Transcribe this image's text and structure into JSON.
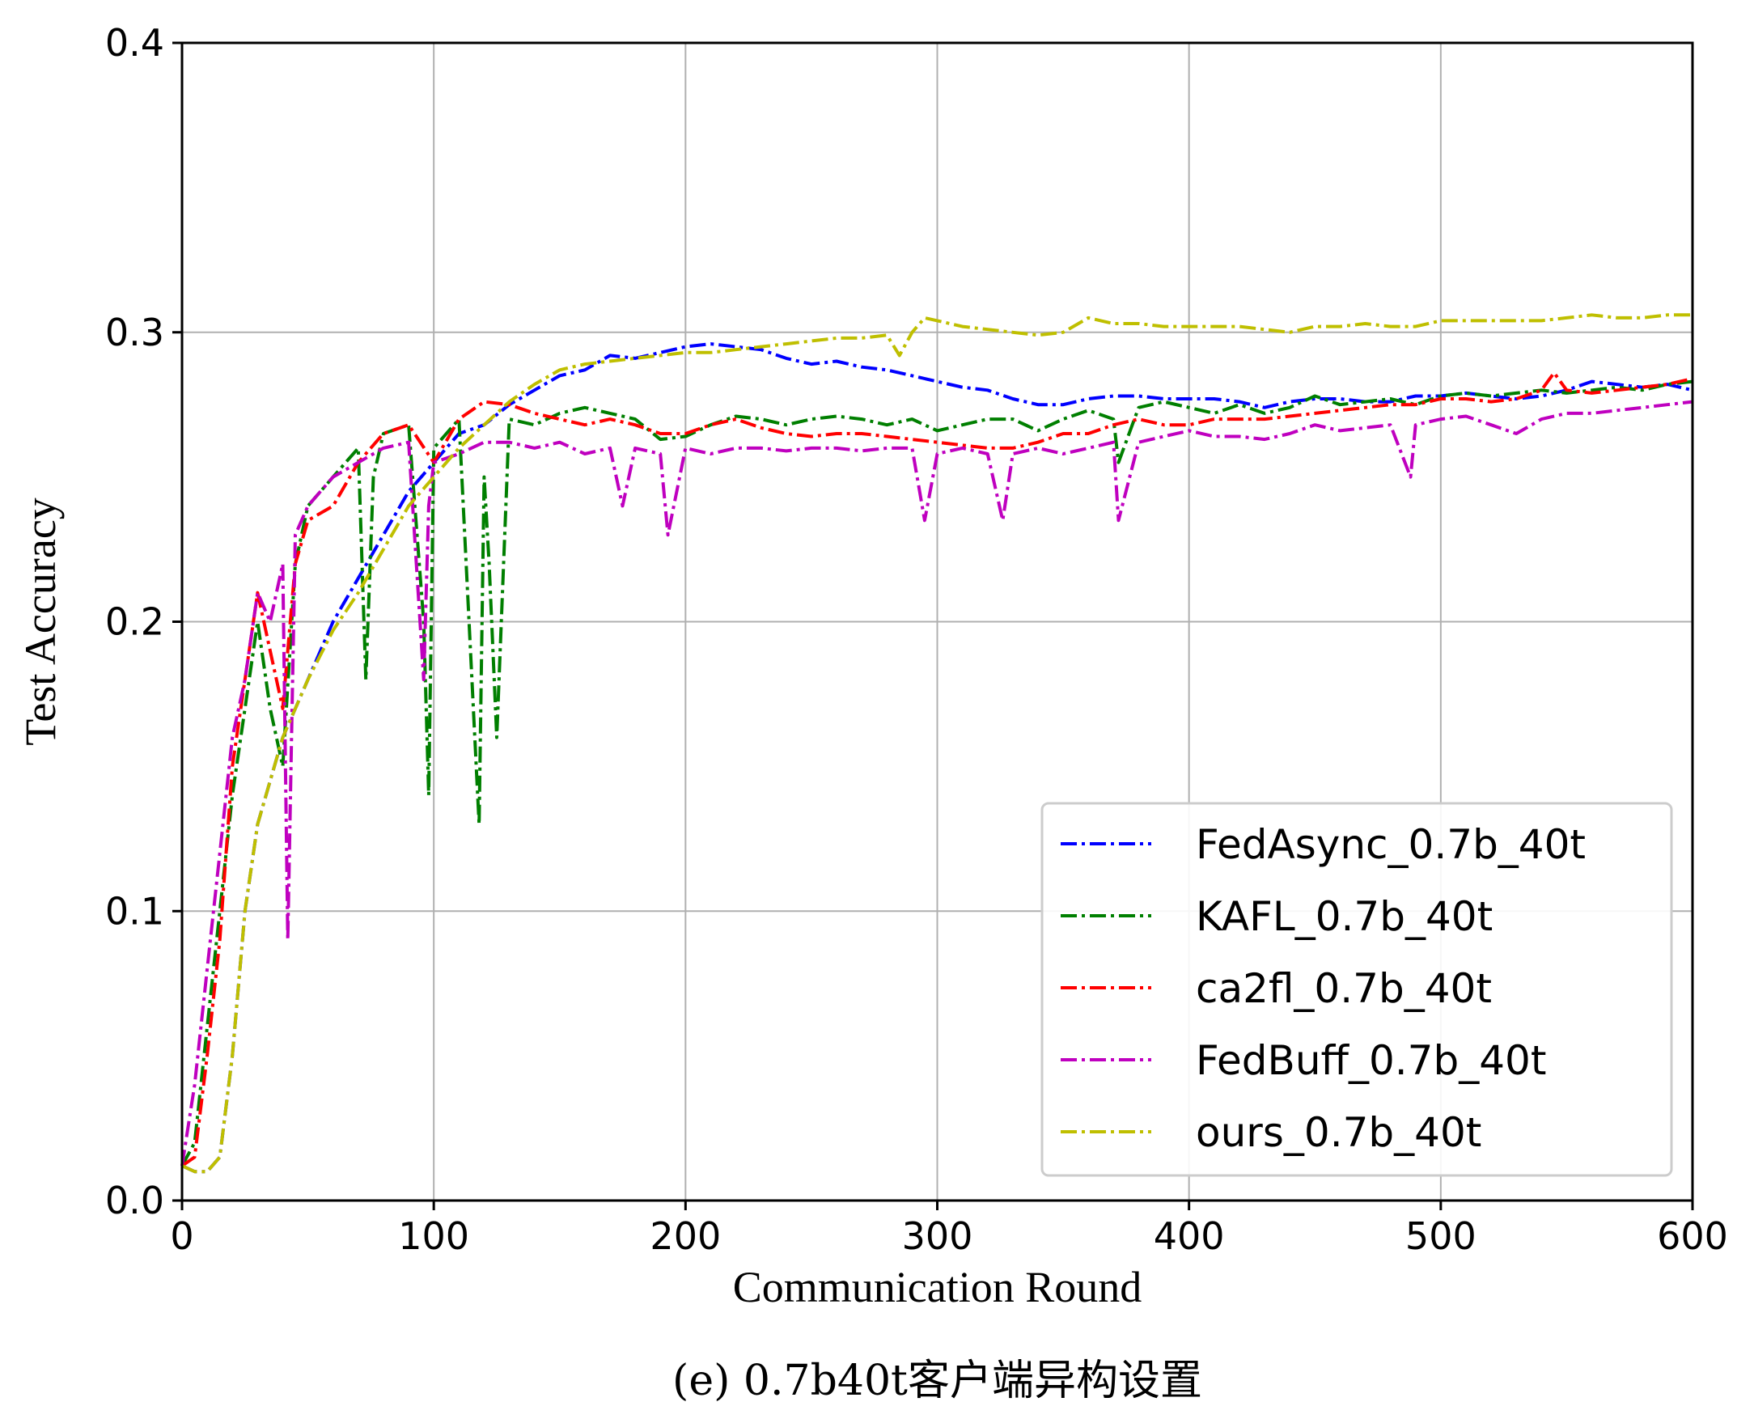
{
  "caption": "(e) 0.7b40t客户端异构设置",
  "chart_data": {
    "type": "line",
    "xlabel": "Communication Round",
    "ylabel": "Test Accuracy",
    "xlim": [
      0,
      600
    ],
    "ylim": [
      0.0,
      0.4
    ],
    "x_ticks": [
      0,
      100,
      200,
      300,
      400,
      500,
      600
    ],
    "x_tick_labels": [
      "0",
      "100",
      "200",
      "300",
      "400",
      "500",
      "600"
    ],
    "y_ticks": [
      0.0,
      0.1,
      0.2,
      0.3,
      0.4
    ],
    "y_tick_labels": [
      "0.0",
      "0.1",
      "0.2",
      "0.3",
      "0.4"
    ],
    "grid": true,
    "legend_position": "lower-right",
    "line_style": "dashdot",
    "series": [
      {
        "name": "FedAsync_0.7b_40t",
        "color": "#0000ff",
        "x": [
          0,
          5,
          10,
          15,
          20,
          25,
          30,
          35,
          40,
          50,
          60,
          70,
          80,
          90,
          100,
          110,
          120,
          130,
          140,
          150,
          160,
          170,
          180,
          190,
          200,
          210,
          220,
          230,
          240,
          250,
          260,
          270,
          280,
          290,
          300,
          310,
          320,
          330,
          340,
          350,
          360,
          370,
          380,
          390,
          400,
          410,
          420,
          430,
          440,
          450,
          460,
          470,
          480,
          490,
          500,
          510,
          520,
          530,
          540,
          550,
          560,
          570,
          580,
          590,
          600
        ],
        "y": [
          0.012,
          0.01,
          0.01,
          0.015,
          0.05,
          0.1,
          0.13,
          0.145,
          0.16,
          0.18,
          0.2,
          0.215,
          0.23,
          0.245,
          0.255,
          0.265,
          0.268,
          0.275,
          0.28,
          0.285,
          0.287,
          0.292,
          0.291,
          0.293,
          0.295,
          0.296,
          0.295,
          0.294,
          0.291,
          0.289,
          0.29,
          0.288,
          0.287,
          0.285,
          0.283,
          0.281,
          0.28,
          0.277,
          0.275,
          0.275,
          0.277,
          0.278,
          0.278,
          0.277,
          0.277,
          0.277,
          0.276,
          0.274,
          0.276,
          0.277,
          0.277,
          0.276,
          0.276,
          0.278,
          0.278,
          0.279,
          0.278,
          0.277,
          0.278,
          0.28,
          0.283,
          0.282,
          0.281,
          0.282,
          0.28
        ]
      },
      {
        "name": "KAFL_0.7b_40t",
        "color": "#007f00",
        "x": [
          0,
          5,
          10,
          15,
          20,
          25,
          30,
          35,
          40,
          45,
          50,
          60,
          70,
          73,
          76,
          80,
          90,
          96,
          98,
          100,
          110,
          118,
          120,
          122,
          125,
          130,
          140,
          150,
          160,
          170,
          180,
          190,
          200,
          210,
          220,
          230,
          240,
          250,
          260,
          270,
          280,
          290,
          300,
          310,
          320,
          330,
          340,
          350,
          360,
          370,
          372,
          380,
          390,
          400,
          410,
          420,
          430,
          440,
          450,
          460,
          470,
          480,
          490,
          500,
          510,
          520,
          530,
          540,
          550,
          560,
          570,
          580,
          590,
          600
        ],
        "y": [
          0.012,
          0.02,
          0.06,
          0.1,
          0.14,
          0.17,
          0.2,
          0.17,
          0.15,
          0.22,
          0.24,
          0.25,
          0.26,
          0.18,
          0.25,
          0.265,
          0.268,
          0.2,
          0.14,
          0.26,
          0.27,
          0.13,
          0.25,
          0.22,
          0.16,
          0.27,
          0.268,
          0.272,
          0.274,
          0.272,
          0.27,
          0.263,
          0.264,
          0.268,
          0.271,
          0.27,
          0.268,
          0.27,
          0.271,
          0.27,
          0.268,
          0.27,
          0.266,
          0.268,
          0.27,
          0.27,
          0.266,
          0.27,
          0.273,
          0.27,
          0.255,
          0.274,
          0.276,
          0.274,
          0.272,
          0.275,
          0.272,
          0.274,
          0.278,
          0.275,
          0.276,
          0.277,
          0.275,
          0.278,
          0.279,
          0.278,
          0.279,
          0.28,
          0.279,
          0.28,
          0.281,
          0.28,
          0.282,
          0.283
        ]
      },
      {
        "name": "ca2fl_0.7b_40t",
        "color": "#ff0000",
        "x": [
          0,
          5,
          10,
          15,
          20,
          25,
          30,
          35,
          40,
          45,
          50,
          60,
          70,
          80,
          90,
          100,
          110,
          120,
          130,
          140,
          150,
          160,
          170,
          180,
          190,
          200,
          210,
          220,
          230,
          240,
          250,
          260,
          270,
          280,
          290,
          300,
          310,
          320,
          330,
          340,
          350,
          360,
          370,
          380,
          390,
          400,
          410,
          420,
          430,
          440,
          450,
          460,
          470,
          480,
          490,
          500,
          510,
          520,
          530,
          540,
          545,
          550,
          560,
          570,
          580,
          590,
          600
        ],
        "y": [
          0.012,
          0.015,
          0.05,
          0.09,
          0.15,
          0.18,
          0.21,
          0.19,
          0.17,
          0.22,
          0.235,
          0.24,
          0.255,
          0.265,
          0.268,
          0.255,
          0.27,
          0.276,
          0.275,
          0.272,
          0.27,
          0.268,
          0.27,
          0.268,
          0.265,
          0.265,
          0.268,
          0.27,
          0.267,
          0.265,
          0.264,
          0.265,
          0.265,
          0.264,
          0.263,
          0.262,
          0.261,
          0.26,
          0.26,
          0.262,
          0.265,
          0.265,
          0.268,
          0.27,
          0.268,
          0.268,
          0.27,
          0.27,
          0.27,
          0.271,
          0.272,
          0.273,
          0.274,
          0.275,
          0.275,
          0.277,
          0.277,
          0.276,
          0.277,
          0.28,
          0.286,
          0.28,
          0.279,
          0.28,
          0.281,
          0.282,
          0.284
        ]
      },
      {
        "name": "FedBuff_0.7b_40t",
        "color": "#bf00bf",
        "x": [
          0,
          5,
          10,
          15,
          20,
          25,
          30,
          35,
          40,
          42,
          45,
          50,
          60,
          70,
          80,
          90,
          96,
          98,
          100,
          110,
          120,
          130,
          140,
          150,
          160,
          170,
          175,
          180,
          190,
          193,
          200,
          210,
          220,
          230,
          240,
          250,
          260,
          270,
          280,
          290,
          295,
          300,
          310,
          320,
          326,
          330,
          340,
          350,
          360,
          370,
          372,
          380,
          390,
          400,
          410,
          420,
          430,
          440,
          450,
          460,
          470,
          480,
          488,
          490,
          500,
          510,
          520,
          530,
          540,
          550,
          560,
          570,
          580,
          590,
          600
        ],
        "y": [
          0.012,
          0.04,
          0.08,
          0.12,
          0.16,
          0.18,
          0.21,
          0.2,
          0.22,
          0.09,
          0.23,
          0.24,
          0.25,
          0.255,
          0.26,
          0.262,
          0.18,
          0.24,
          0.255,
          0.258,
          0.262,
          0.262,
          0.26,
          0.262,
          0.258,
          0.26,
          0.24,
          0.26,
          0.258,
          0.23,
          0.26,
          0.258,
          0.26,
          0.26,
          0.259,
          0.26,
          0.26,
          0.259,
          0.26,
          0.26,
          0.235,
          0.258,
          0.26,
          0.258,
          0.235,
          0.258,
          0.26,
          0.258,
          0.26,
          0.262,
          0.235,
          0.262,
          0.264,
          0.266,
          0.264,
          0.264,
          0.263,
          0.265,
          0.268,
          0.266,
          0.267,
          0.268,
          0.25,
          0.268,
          0.27,
          0.271,
          0.268,
          0.265,
          0.27,
          0.272,
          0.272,
          0.273,
          0.274,
          0.275,
          0.276
        ]
      },
      {
        "name": "ours_0.7b_40t",
        "color": "#bfbf00",
        "x": [
          0,
          5,
          10,
          15,
          20,
          25,
          30,
          35,
          40,
          50,
          60,
          70,
          80,
          90,
          100,
          110,
          120,
          130,
          140,
          150,
          160,
          170,
          180,
          190,
          200,
          210,
          220,
          230,
          240,
          250,
          260,
          270,
          280,
          285,
          290,
          295,
          300,
          310,
          320,
          330,
          340,
          350,
          360,
          370,
          380,
          390,
          400,
          410,
          420,
          430,
          440,
          450,
          460,
          470,
          480,
          490,
          500,
          510,
          520,
          530,
          540,
          550,
          560,
          570,
          580,
          590,
          600
        ],
        "y": [
          0.012,
          0.01,
          0.01,
          0.015,
          0.05,
          0.1,
          0.13,
          0.145,
          0.16,
          0.18,
          0.197,
          0.21,
          0.225,
          0.24,
          0.25,
          0.26,
          0.268,
          0.276,
          0.282,
          0.287,
          0.289,
          0.29,
          0.291,
          0.292,
          0.293,
          0.293,
          0.294,
          0.295,
          0.296,
          0.297,
          0.298,
          0.298,
          0.299,
          0.292,
          0.3,
          0.305,
          0.304,
          0.302,
          0.301,
          0.3,
          0.299,
          0.3,
          0.305,
          0.303,
          0.303,
          0.302,
          0.302,
          0.302,
          0.302,
          0.301,
          0.3,
          0.302,
          0.302,
          0.303,
          0.302,
          0.302,
          0.304,
          0.304,
          0.304,
          0.304,
          0.304,
          0.305,
          0.306,
          0.305,
          0.305,
          0.306,
          0.306
        ]
      }
    ]
  }
}
